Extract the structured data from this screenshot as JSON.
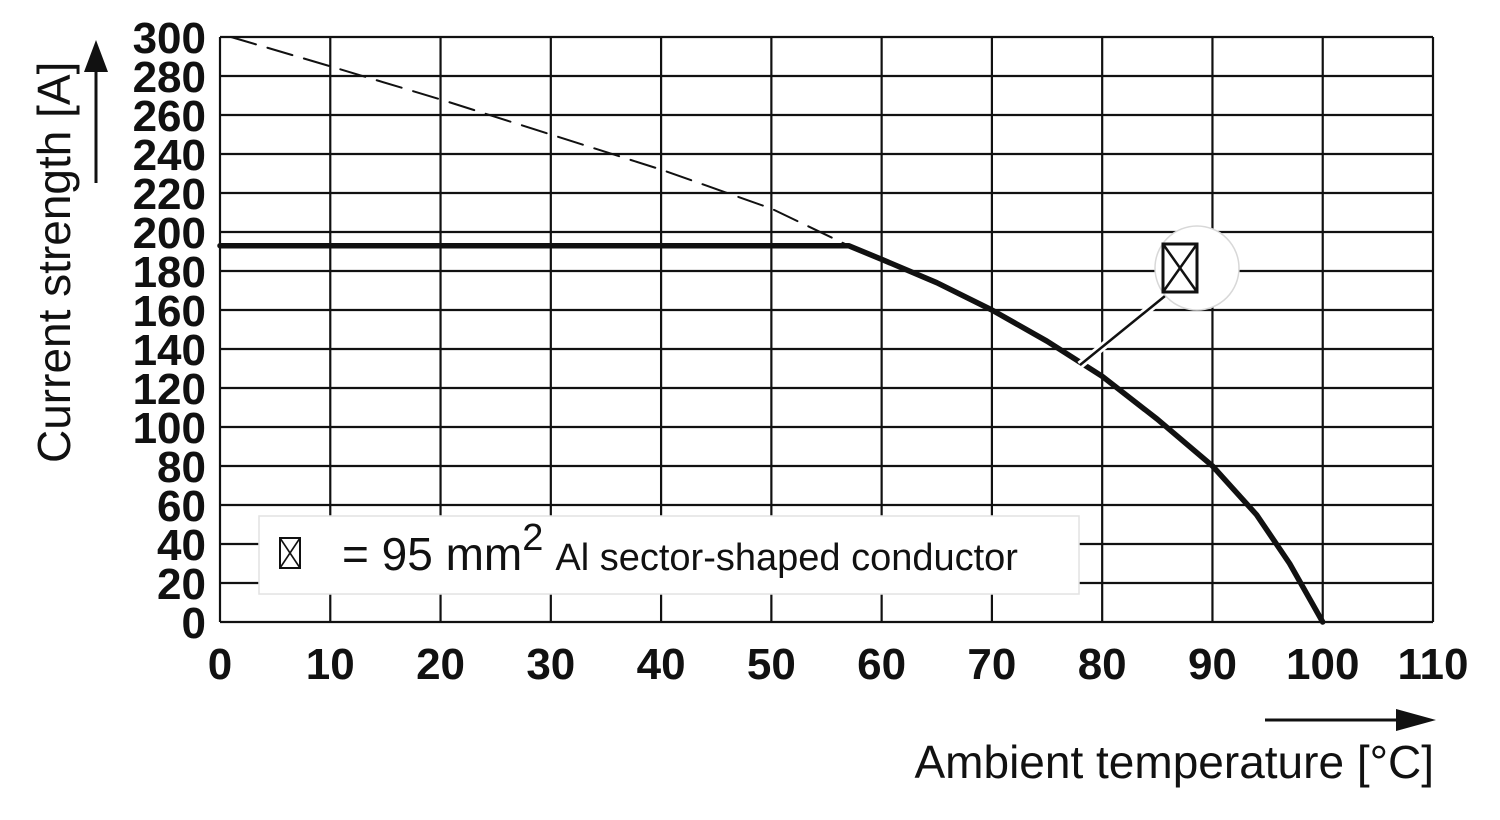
{
  "chart_data": {
    "type": "line",
    "xlabel": "Ambient temperature [°C]",
    "ylabel": "Current strength [A]",
    "xlim": [
      0,
      110
    ],
    "ylim": [
      0,
      300
    ],
    "x_ticks": [
      "0",
      "10",
      "20",
      "30",
      "40",
      "50",
      "60",
      "70",
      "80",
      "90",
      "100",
      "110"
    ],
    "y_ticks": [
      "300",
      "280",
      "260",
      "240",
      "220",
      "200",
      "180",
      "160",
      "140",
      "120",
      "100",
      "80",
      "60",
      "40",
      "20",
      "0"
    ],
    "grid": true,
    "legend_placement": "bottom-left",
    "legend": {
      "eq": "= 95 mm",
      "sup": "2",
      "text": "Al sector-shaped conductor"
    },
    "series": [
      {
        "style": "solid",
        "x": [
          0,
          57,
          60,
          65,
          70,
          75,
          80,
          85,
          90,
          94,
          97,
          99,
          100
        ],
        "y": [
          193,
          193,
          186,
          174,
          160,
          144,
          126,
          104,
          80,
          55,
          30,
          10,
          0
        ]
      },
      {
        "style": "dashed",
        "x": [
          1,
          10,
          20,
          30,
          40,
          50,
          57
        ],
        "y": [
          300,
          285,
          268,
          250,
          232,
          212,
          193
        ]
      }
    ]
  }
}
